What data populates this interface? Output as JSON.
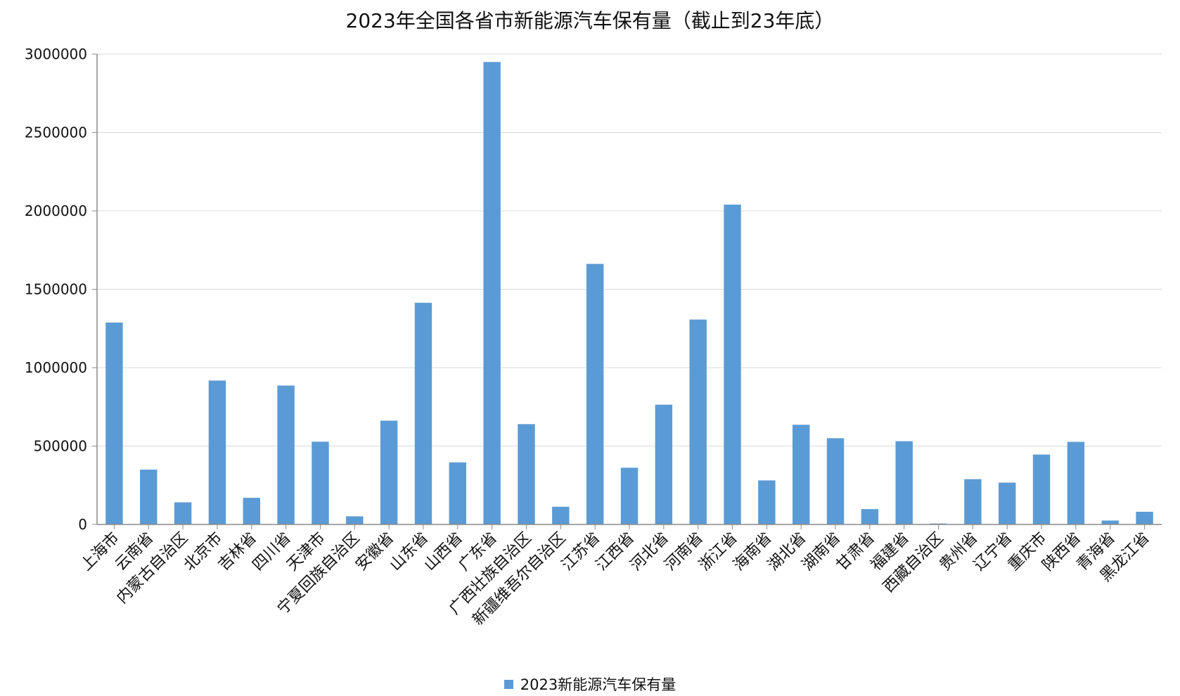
{
  "chart_data": {
    "type": "bar",
    "title": "2023年全国各省市新能源汽车保有量（截止到23年底）",
    "xlabel": "",
    "ylabel": "",
    "categories": [
      "上海市",
      "云南省",
      "内蒙古自治区",
      "北京市",
      "吉林省",
      "四川省",
      "天津市",
      "宁夏回族自治区",
      "安徽省",
      "山东省",
      "山西省",
      "广东省",
      "广西壮族自治区",
      "新疆维吾尔自治区",
      "江苏省",
      "江西省",
      "河北省",
      "河南省",
      "浙江省",
      "海南省",
      "湖北省",
      "湖南省",
      "甘肃省",
      "福建省",
      "西藏自治区",
      "贵州省",
      "辽宁省",
      "重庆市",
      "陕西省",
      "青海省",
      "黑龙江省"
    ],
    "series": [
      {
        "name": "2023新能源汽车保有量",
        "color": "#5b9bd5",
        "values": [
          1288000,
          350000,
          141000,
          918000,
          170000,
          886000,
          528000,
          52000,
          662000,
          1414000,
          396000,
          2950000,
          640000,
          113000,
          1662000,
          362000,
          764000,
          1307000,
          2040000,
          281000,
          636000,
          550000,
          98000,
          531000,
          6000,
          289000,
          267000,
          446000,
          527000,
          25000,
          81000
        ]
      }
    ],
    "ylim": [
      0,
      3000000
    ],
    "yticks": [
      0,
      500000,
      1000000,
      1500000,
      2000000,
      2500000,
      3000000
    ],
    "ytick_labels": [
      "0",
      "500000",
      "1000000",
      "1500000",
      "2000000",
      "2500000",
      "3000000"
    ],
    "grid": true,
    "legend_position": "bottom-center"
  }
}
